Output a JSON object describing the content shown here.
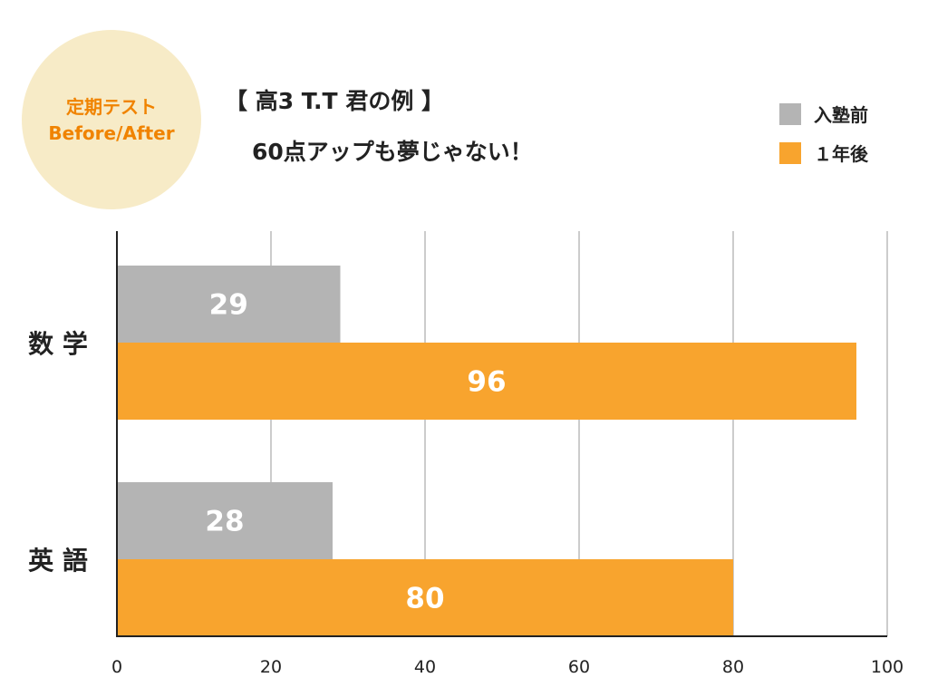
{
  "badge": {
    "line1": "定期テスト",
    "line2": "Before/After"
  },
  "title": {
    "line1": "【 高3  T.T 君の例 】",
    "line2": "60点アップも夢じゃない！"
  },
  "colors": {
    "before": "#b4b4b4",
    "after": "#f8a42e",
    "grid": "#cccccc",
    "badge_bg": "#f7ebc7",
    "badge_text": "#f08300"
  },
  "chart_data": {
    "type": "bar",
    "orientation": "horizontal",
    "categories": [
      "数 学",
      "英 語"
    ],
    "series": [
      {
        "name": "入塾前",
        "values": [
          29,
          28
        ]
      },
      {
        "name": "１年後",
        "values": [
          96,
          80
        ]
      }
    ],
    "xlim": [
      0,
      100
    ],
    "xticks": [
      0,
      20,
      40,
      60,
      80,
      100
    ],
    "grid": true,
    "legend": "top-right"
  }
}
